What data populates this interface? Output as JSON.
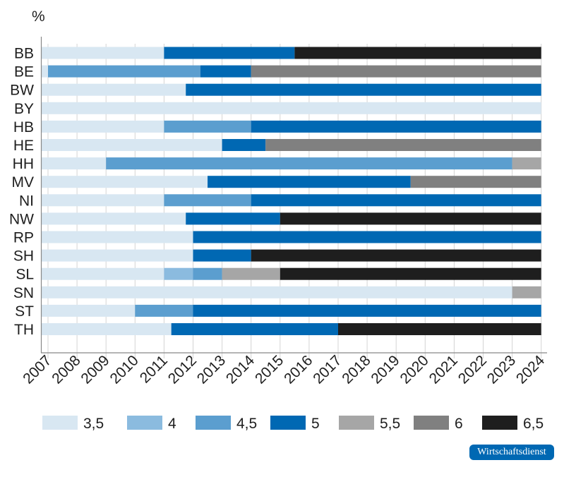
{
  "chart_data": {
    "type": "bar",
    "orientation": "horizontal-stacked-timeline",
    "ylabel": "%",
    "xlim": [
      2006.78,
      2024
    ],
    "x_ticks": [
      2007,
      2008,
      2009,
      2010,
      2011,
      2012,
      2013,
      2014,
      2015,
      2016,
      2017,
      2018,
      2019,
      2020,
      2021,
      2022,
      2023,
      2024
    ],
    "grid": true,
    "legend_position": "bottom",
    "legend": [
      {
        "label": "3,5",
        "color": "#d8e7f2"
      },
      {
        "label": "4",
        "color": "#8bbbdf"
      },
      {
        "label": "4,5",
        "color": "#5b9ecf"
      },
      {
        "label": "5",
        "color": "#0068b3"
      },
      {
        "label": "5,5",
        "color": "#a6a6a6"
      },
      {
        "label": "6",
        "color": "#808080"
      },
      {
        "label": "6,5",
        "color": "#1e1e1e"
      }
    ],
    "categories": [
      "BB",
      "BE",
      "BW",
      "BY",
      "HB",
      "HE",
      "HH",
      "MV",
      "NI",
      "NW",
      "RP",
      "SH",
      "SL",
      "SN",
      "ST",
      "TH"
    ],
    "series": [
      {
        "state": "BB",
        "segments": [
          {
            "rate": "3,5",
            "from": 2006.78,
            "to": 2011
          },
          {
            "rate": "5",
            "from": 2011,
            "to": 2015.5
          },
          {
            "rate": "6,5",
            "from": 2015.5,
            "to": 2024
          }
        ]
      },
      {
        "state": "BE",
        "segments": [
          {
            "rate": "3,5",
            "from": 2006.78,
            "to": 2007
          },
          {
            "rate": "4,5",
            "from": 2007,
            "to": 2012.25
          },
          {
            "rate": "5",
            "from": 2012.25,
            "to": 2014
          },
          {
            "rate": "6",
            "from": 2014,
            "to": 2024
          }
        ]
      },
      {
        "state": "BW",
        "segments": [
          {
            "rate": "3,5",
            "from": 2006.78,
            "to": 2011.75
          },
          {
            "rate": "5",
            "from": 2011.75,
            "to": 2024
          }
        ]
      },
      {
        "state": "BY",
        "segments": [
          {
            "rate": "3,5",
            "from": 2006.78,
            "to": 2024
          }
        ]
      },
      {
        "state": "HB",
        "segments": [
          {
            "rate": "3,5",
            "from": 2006.78,
            "to": 2011
          },
          {
            "rate": "4,5",
            "from": 2011,
            "to": 2014
          },
          {
            "rate": "5",
            "from": 2014,
            "to": 2024
          }
        ]
      },
      {
        "state": "HE",
        "segments": [
          {
            "rate": "3,5",
            "from": 2006.78,
            "to": 2013
          },
          {
            "rate": "5",
            "from": 2013,
            "to": 2014.5
          },
          {
            "rate": "6",
            "from": 2014.5,
            "to": 2024
          }
        ]
      },
      {
        "state": "HH",
        "segments": [
          {
            "rate": "3,5",
            "from": 2006.78,
            "to": 2009
          },
          {
            "rate": "4,5",
            "from": 2009,
            "to": 2023
          },
          {
            "rate": "5,5",
            "from": 2023,
            "to": 2024
          }
        ]
      },
      {
        "state": "MV",
        "segments": [
          {
            "rate": "3,5",
            "from": 2006.78,
            "to": 2012.5
          },
          {
            "rate": "5",
            "from": 2012.5,
            "to": 2019.5
          },
          {
            "rate": "6",
            "from": 2019.5,
            "to": 2024
          }
        ]
      },
      {
        "state": "NI",
        "segments": [
          {
            "rate": "3,5",
            "from": 2006.78,
            "to": 2011
          },
          {
            "rate": "4,5",
            "from": 2011,
            "to": 2014
          },
          {
            "rate": "5",
            "from": 2014,
            "to": 2024
          }
        ]
      },
      {
        "state": "NW",
        "segments": [
          {
            "rate": "3,5",
            "from": 2006.78,
            "to": 2011.75
          },
          {
            "rate": "5",
            "from": 2011.75,
            "to": 2015
          },
          {
            "rate": "6,5",
            "from": 2015,
            "to": 2024
          }
        ]
      },
      {
        "state": "RP",
        "segments": [
          {
            "rate": "3,5",
            "from": 2006.78,
            "to": 2012
          },
          {
            "rate": "5",
            "from": 2012,
            "to": 2024
          }
        ]
      },
      {
        "state": "SH",
        "segments": [
          {
            "rate": "3,5",
            "from": 2006.78,
            "to": 2012
          },
          {
            "rate": "5",
            "from": 2012,
            "to": 2014
          },
          {
            "rate": "6,5",
            "from": 2014,
            "to": 2024
          }
        ]
      },
      {
        "state": "SL",
        "segments": [
          {
            "rate": "3,5",
            "from": 2006.78,
            "to": 2011
          },
          {
            "rate": "4",
            "from": 2011,
            "to": 2012
          },
          {
            "rate": "4,5",
            "from": 2012,
            "to": 2013
          },
          {
            "rate": "5,5",
            "from": 2013,
            "to": 2015
          },
          {
            "rate": "6,5",
            "from": 2015,
            "to": 2024
          }
        ]
      },
      {
        "state": "SN",
        "segments": [
          {
            "rate": "3,5",
            "from": 2006.78,
            "to": 2023
          },
          {
            "rate": "5,5",
            "from": 2023,
            "to": 2024
          }
        ]
      },
      {
        "state": "ST",
        "segments": [
          {
            "rate": "3,5",
            "from": 2006.78,
            "to": 2010
          },
          {
            "rate": "4,5",
            "from": 2010,
            "to": 2012
          },
          {
            "rate": "5",
            "from": 2012,
            "to": 2024
          }
        ]
      },
      {
        "state": "TH",
        "segments": [
          {
            "rate": "3,5",
            "from": 2006.78,
            "to": 2011.25
          },
          {
            "rate": "5",
            "from": 2011.25,
            "to": 2017
          },
          {
            "rate": "6,5",
            "from": 2017,
            "to": 2024
          }
        ]
      }
    ]
  },
  "branding": {
    "logo_text": "Wirtschaftsdienst"
  }
}
